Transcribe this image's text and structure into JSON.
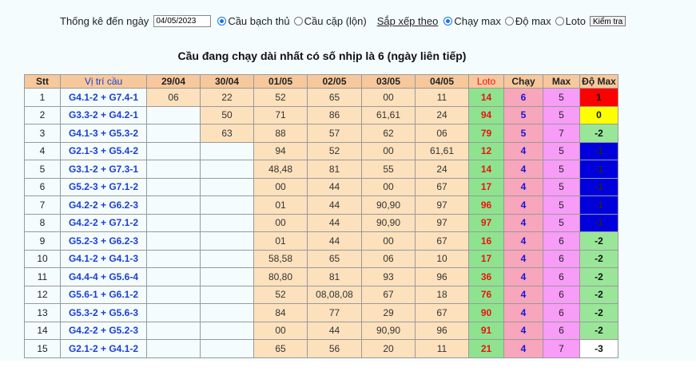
{
  "toolbar": {
    "label_until": "Thống kê đến ngày",
    "date_value": "04/05/2023",
    "opt_bach_thu": "Cầu bạch thủ",
    "opt_cap": "Cầu cặp (lộn)",
    "sort_label": "Sắp xếp theo",
    "opt_chay_max": "Chạy max",
    "opt_do_max": "Độ max",
    "opt_loto": "Loto",
    "check_button": "Kiểm tra"
  },
  "title": "Cầu đang chạy dài nhất có số nhịp là 6 (ngày liên tiếp)",
  "headers": [
    "Stt",
    "Vị trí cầu",
    "29/04",
    "30/04",
    "01/05",
    "02/05",
    "03/05",
    "04/05",
    "Loto",
    "Chạy",
    "Max",
    "Độ Max"
  ],
  "colors": {
    "domax_red": "#ff0000",
    "domax_yellow": "#ffff00",
    "domax_green": "#99e699",
    "domax_blue": "#0000dd",
    "domax_white": "#ffffff"
  },
  "rows": [
    {
      "stt": "1",
      "vitri": "G4.1-2 + G7.4-1",
      "d": [
        "06",
        "22",
        "52",
        "65",
        "00",
        "11"
      ],
      "loto": "14",
      "chay": "6",
      "max": "5",
      "domax": "1",
      "dm_bg": "#ff0000",
      "dm_fg": "#111111"
    },
    {
      "stt": "2",
      "vitri": "G3.3-2 + G4.2-1",
      "d": [
        "",
        "50",
        "71",
        "86",
        "61,61",
        "24"
      ],
      "loto": "94",
      "chay": "5",
      "max": "5",
      "domax": "0",
      "dm_bg": "#ffff00",
      "dm_fg": "#111111"
    },
    {
      "stt": "3",
      "vitri": "G4.1-3 + G5.3-2",
      "d": [
        "",
        "63",
        "88",
        "57",
        "62",
        "06"
      ],
      "loto": "79",
      "chay": "5",
      "max": "7",
      "domax": "-2",
      "dm_bg": "#99e699",
      "dm_fg": "#111111"
    },
    {
      "stt": "4",
      "vitri": "G2.1-3 + G5.4-2",
      "d": [
        "",
        "",
        "94",
        "52",
        "00",
        "61,61"
      ],
      "loto": "12",
      "chay": "4",
      "max": "5",
      "domax": "-1",
      "dm_bg": "#0000dd",
      "dm_fg": "#222222"
    },
    {
      "stt": "5",
      "vitri": "G3.1-2 + G7.3-1",
      "d": [
        "",
        "",
        "48,48",
        "81",
        "55",
        "24"
      ],
      "loto": "14",
      "chay": "4",
      "max": "5",
      "domax": "-1",
      "dm_bg": "#0000dd",
      "dm_fg": "#222222"
    },
    {
      "stt": "6",
      "vitri": "G5.2-3 + G7.1-2",
      "d": [
        "",
        "",
        "00",
        "44",
        "00",
        "67"
      ],
      "loto": "17",
      "chay": "4",
      "max": "5",
      "domax": "-1",
      "dm_bg": "#0000dd",
      "dm_fg": "#222222"
    },
    {
      "stt": "7",
      "vitri": "G4.2-2 + G6.2-3",
      "d": [
        "",
        "",
        "01",
        "44",
        "90,90",
        "97"
      ],
      "loto": "96",
      "chay": "4",
      "max": "5",
      "domax": "-1",
      "dm_bg": "#0000dd",
      "dm_fg": "#222222"
    },
    {
      "stt": "8",
      "vitri": "G4.2-2 + G7.1-2",
      "d": [
        "",
        "",
        "00",
        "44",
        "90,90",
        "97"
      ],
      "loto": "97",
      "chay": "4",
      "max": "5",
      "domax": "-1",
      "dm_bg": "#0000dd",
      "dm_fg": "#222222"
    },
    {
      "stt": "9",
      "vitri": "G5.2-3 + G6.2-3",
      "d": [
        "",
        "",
        "01",
        "44",
        "00",
        "67"
      ],
      "loto": "16",
      "chay": "4",
      "max": "6",
      "domax": "-2",
      "dm_bg": "#99e699",
      "dm_fg": "#111111"
    },
    {
      "stt": "10",
      "vitri": "G4.1-2 + G4.1-3",
      "d": [
        "",
        "",
        "58,58",
        "65",
        "06",
        "10"
      ],
      "loto": "17",
      "chay": "4",
      "max": "6",
      "domax": "-2",
      "dm_bg": "#99e699",
      "dm_fg": "#111111"
    },
    {
      "stt": "11",
      "vitri": "G4.4-4 + G5.6-4",
      "d": [
        "",
        "",
        "80,80",
        "81",
        "93",
        "96"
      ],
      "loto": "36",
      "chay": "4",
      "max": "6",
      "domax": "-2",
      "dm_bg": "#99e699",
      "dm_fg": "#111111"
    },
    {
      "stt": "12",
      "vitri": "G5.6-1 + G6.1-2",
      "d": [
        "",
        "",
        "52",
        "08,08,08",
        "67",
        "18"
      ],
      "loto": "76",
      "chay": "4",
      "max": "6",
      "domax": "-2",
      "dm_bg": "#99e699",
      "dm_fg": "#111111"
    },
    {
      "stt": "13",
      "vitri": "G5.3-2 + G5.6-3",
      "d": [
        "",
        "",
        "84",
        "77",
        "29",
        "67"
      ],
      "loto": "90",
      "chay": "4",
      "max": "6",
      "domax": "-2",
      "dm_bg": "#99e699",
      "dm_fg": "#111111"
    },
    {
      "stt": "14",
      "vitri": "G4.2-2 + G5.2-3",
      "d": [
        "",
        "",
        "00",
        "44",
        "90,90",
        "96"
      ],
      "loto": "91",
      "chay": "4",
      "max": "6",
      "domax": "-2",
      "dm_bg": "#99e699",
      "dm_fg": "#111111"
    },
    {
      "stt": "15",
      "vitri": "G2.1-2 + G4.1-2",
      "d": [
        "",
        "",
        "65",
        "56",
        "20",
        "11"
      ],
      "loto": "21",
      "chay": "4",
      "max": "7",
      "domax": "-3",
      "dm_bg": "#ffffff",
      "dm_fg": "#111111"
    }
  ]
}
